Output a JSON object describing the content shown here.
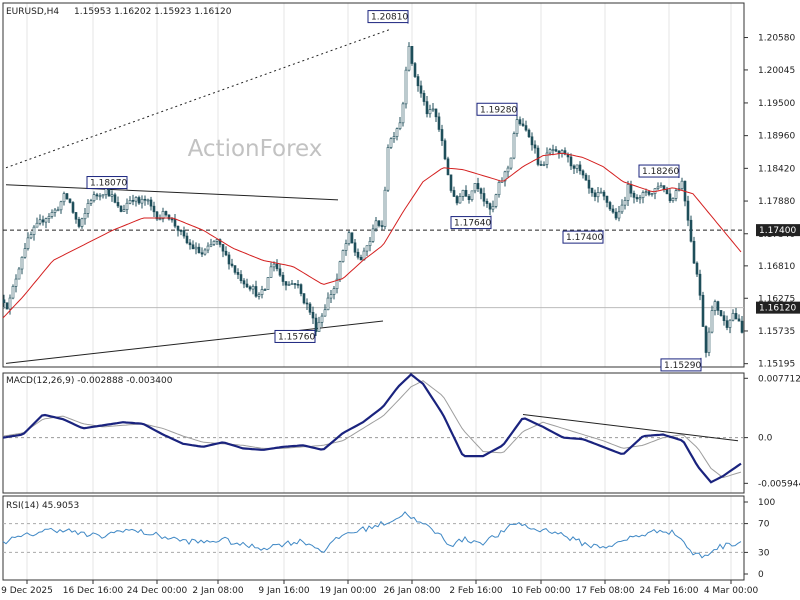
{
  "header": {
    "symbol": "EURUSD,H4",
    "ohlc": "1.15953 1.16202 1.15923 1.16120"
  },
  "watermark": "ActionForex",
  "colors": {
    "candle": "#1f4e5a",
    "ma": "#d42020",
    "macd": "#1a237e",
    "signal": "#9e9e9e",
    "rsi": "#3f88c5",
    "grid": "#e6e6e6",
    "border": "#333333"
  },
  "chart_data": [
    {
      "type": "candlestick",
      "pane": "price",
      "ylim": [
        1.514,
        1.2115
      ],
      "y_ticks": [
        "1.20580",
        "1.20045",
        "1.19500",
        "1.18960",
        "1.18420",
        "1.17880",
        "1.17340",
        "1.16810",
        "1.16275",
        "1.15735",
        "1.15195"
      ],
      "y_tick_values": [
        1.2058,
        1.20045,
        1.195,
        1.1896,
        1.1842,
        1.1788,
        1.1734,
        1.1681,
        1.16275,
        1.15735,
        1.15195
      ],
      "current_price": 1.1612,
      "current_price_label": "1.16120",
      "level": 1.174,
      "level_label": "1.17400",
      "price_anchors": [
        [
          0,
          1.1625
        ],
        [
          4,
          1.1612
        ],
        [
          10,
          1.165
        ],
        [
          20,
          1.171
        ],
        [
          30,
          1.174
        ],
        [
          40,
          1.176
        ],
        [
          50,
          1.177
        ],
        [
          55,
          1.178
        ],
        [
          60,
          1.1795
        ],
        [
          65,
          1.179
        ],
        [
          70,
          1.1765
        ],
        [
          75,
          1.1745
        ],
        [
          80,
          1.176
        ],
        [
          85,
          1.179
        ],
        [
          95,
          1.18
        ],
        [
          102,
          1.1807
        ],
        [
          108,
          1.1795
        ],
        [
          112,
          1.178
        ],
        [
          118,
          1.177
        ],
        [
          122,
          1.1783
        ],
        [
          128,
          1.1795
        ],
        [
          135,
          1.1785
        ],
        [
          142,
          1.179
        ],
        [
          148,
          1.1775
        ],
        [
          155,
          1.176
        ],
        [
          162,
          1.177
        ],
        [
          168,
          1.1755
        ],
        [
          175,
          1.174
        ],
        [
          182,
          1.172
        ],
        [
          190,
          1.171
        ],
        [
          198,
          1.17
        ],
        [
          205,
          1.171
        ],
        [
          212,
          1.1725
        ],
        [
          218,
          1.1705
        ],
        [
          225,
          1.169
        ],
        [
          232,
          1.167
        ],
        [
          240,
          1.1655
        ],
        [
          248,
          1.1645
        ],
        [
          255,
          1.163
        ],
        [
          262,
          1.1645
        ],
        [
          268,
          1.169
        ],
        [
          272,
          1.168
        ],
        [
          278,
          1.166
        ],
        [
          285,
          1.165
        ],
        [
          292,
          1.1655
        ],
        [
          298,
          1.163
        ],
        [
          305,
          1.161
        ],
        [
          312,
          1.1578
        ],
        [
          318,
          1.16
        ],
        [
          325,
          1.163
        ],
        [
          332,
          1.165
        ],
        [
          338,
          1.17
        ],
        [
          345,
          1.173
        ],
        [
          352,
          1.17
        ],
        [
          358,
          1.169
        ],
        [
          362,
          1.171
        ],
        [
          368,
          1.173
        ],
        [
          372,
          1.176
        ],
        [
          378,
          1.174
        ],
        [
          384,
          1.188
        ],
        [
          390,
          1.19
        ],
        [
          396,
          1.192
        ],
        [
          400,
          1.196
        ],
        [
          404,
          1.206
        ],
        [
          408,
          1.201
        ],
        [
          412,
          1.199
        ],
        [
          418,
          1.196
        ],
        [
          424,
          1.193
        ],
        [
          430,
          1.194
        ],
        [
          436,
          1.19
        ],
        [
          442,
          1.185
        ],
        [
          448,
          1.18
        ],
        [
          452,
          1.178
        ],
        [
          458,
          1.181
        ],
        [
          464,
          1.179
        ],
        [
          470,
          1.182
        ],
        [
          476,
          1.181
        ],
        [
          482,
          1.178
        ],
        [
          488,
          1.177
        ],
        [
          494,
          1.181
        ],
        [
          500,
          1.183
        ],
        [
          506,
          1.185
        ],
        [
          510,
          1.19
        ],
        [
          514,
          1.1925
        ],
        [
          518,
          1.191
        ],
        [
          524,
          1.19
        ],
        [
          530,
          1.188
        ],
        [
          536,
          1.184
        ],
        [
          542,
          1.186
        ],
        [
          548,
          1.1875
        ],
        [
          554,
          1.186
        ],
        [
          560,
          1.187
        ],
        [
          566,
          1.185
        ],
        [
          572,
          1.1845
        ],
        [
          578,
          1.183
        ],
        [
          584,
          1.181
        ],
        [
          590,
          1.179
        ],
        [
          596,
          1.18
        ],
        [
          602,
          1.179
        ],
        [
          608,
          1.177
        ],
        [
          614,
          1.176
        ],
        [
          618,
          1.178
        ],
        [
          624,
          1.181
        ],
        [
          630,
          1.18
        ],
        [
          636,
          1.179
        ],
        [
          642,
          1.1805
        ],
        [
          648,
          1.18
        ],
        [
          654,
          1.1815
        ],
        [
          660,
          1.181
        ],
        [
          666,
          1.179
        ],
        [
          672,
          1.1805
        ],
        [
          678,
          1.182
        ],
        [
          684,
          1.176
        ],
        [
          690,
          1.169
        ],
        [
          694,
          1.166
        ],
        [
          698,
          1.16
        ],
        [
          702,
          1.154
        ],
        [
          706,
          1.159
        ],
        [
          710,
          1.162
        ],
        [
          716,
          1.1605
        ],
        [
          722,
          1.158
        ],
        [
          728,
          1.1605
        ],
        [
          734,
          1.159
        ],
        [
          738,
          1.157
        ]
      ],
      "ma_anchors": [
        [
          0,
          1.1595
        ],
        [
          20,
          1.163
        ],
        [
          50,
          1.169
        ],
        [
          80,
          1.1715
        ],
        [
          110,
          1.174
        ],
        [
          140,
          1.176
        ],
        [
          170,
          1.176
        ],
        [
          200,
          1.174
        ],
        [
          230,
          1.171
        ],
        [
          260,
          1.169
        ],
        [
          290,
          1.168
        ],
        [
          320,
          1.165
        ],
        [
          340,
          1.166
        ],
        [
          360,
          1.169
        ],
        [
          380,
          1.1715
        ],
        [
          400,
          1.177
        ],
        [
          420,
          1.182
        ],
        [
          440,
          1.1843
        ],
        [
          460,
          1.184
        ],
        [
          480,
          1.183
        ],
        [
          500,
          1.182
        ],
        [
          520,
          1.1845
        ],
        [
          540,
          1.1863
        ],
        [
          560,
          1.1867
        ],
        [
          580,
          1.186
        ],
        [
          600,
          1.1845
        ],
        [
          620,
          1.182
        ],
        [
          650,
          1.1803
        ],
        [
          670,
          1.181
        ],
        [
          690,
          1.18
        ],
        [
          710,
          1.176
        ],
        [
          740,
          1.17
        ]
      ],
      "labels": [
        {
          "text": "1.20810",
          "x": 405,
          "value": 1.2081,
          "anchor": "top"
        },
        {
          "text": "1.19280",
          "x": 514,
          "value": 1.1928,
          "anchor": "top"
        },
        {
          "text": "1.18260",
          "x": 676,
          "value": 1.1826,
          "anchor": "top"
        },
        {
          "text": "1.18070",
          "x": 124,
          "value": 1.1807,
          "anchor": "top"
        },
        {
          "text": "1.17640",
          "x": 488,
          "value": 1.1764,
          "anchor": "bottom"
        },
        {
          "text": "1.17400",
          "x": 600,
          "value": 1.174,
          "anchor": "bottom"
        },
        {
          "text": "1.15760",
          "x": 312,
          "value": 1.1576,
          "anchor": "bottom"
        },
        {
          "text": "1.15290",
          "x": 698,
          "value": 1.1529,
          "anchor": "bottom"
        }
      ],
      "trendlines": [
        {
          "style": "dotted",
          "from": [
            3,
            1.1843
          ],
          "to": [
            388,
            1.2072
          ]
        },
        {
          "style": "solid",
          "from": [
            3,
            1.1815
          ],
          "to": [
            335,
            1.179
          ]
        },
        {
          "style": "solid",
          "from": [
            3,
            1.152
          ],
          "to": [
            380,
            1.159
          ]
        }
      ]
    },
    {
      "type": "line",
      "pane": "macd",
      "title": "MACD(12,26,9) -0.002888 -0.003400",
      "ylim": [
        -0.0072,
        0.0084
      ],
      "y_ticks": [
        "0.007712",
        "0.0",
        "-0.005944"
      ],
      "y_tick_values": [
        0.007712,
        0.0,
        -0.005944
      ],
      "macd_anchors": [
        [
          0,
          0.0
        ],
        [
          20,
          0.0004
        ],
        [
          40,
          0.003
        ],
        [
          60,
          0.0024
        ],
        [
          80,
          0.0012
        ],
        [
          100,
          0.0016
        ],
        [
          120,
          0.002
        ],
        [
          140,
          0.0018
        ],
        [
          160,
          0.0004
        ],
        [
          180,
          -0.0008
        ],
        [
          200,
          -0.0012
        ],
        [
          220,
          -0.0006
        ],
        [
          240,
          -0.0014
        ],
        [
          260,
          -0.0016
        ],
        [
          280,
          -0.0012
        ],
        [
          300,
          -0.001
        ],
        [
          320,
          -0.0016
        ],
        [
          340,
          0.0006
        ],
        [
          360,
          0.002
        ],
        [
          380,
          0.004
        ],
        [
          395,
          0.0066
        ],
        [
          408,
          0.0082
        ],
        [
          420,
          0.007
        ],
        [
          440,
          0.003
        ],
        [
          460,
          -0.0024
        ],
        [
          480,
          -0.0024
        ],
        [
          500,
          -0.001
        ],
        [
          520,
          0.0026
        ],
        [
          540,
          0.0014
        ],
        [
          560,
          0.0
        ],
        [
          580,
          -0.0002
        ],
        [
          600,
          -0.0012
        ],
        [
          620,
          -0.0022
        ],
        [
          640,
          0.0002
        ],
        [
          660,
          0.0004
        ],
        [
          680,
          -0.0004
        ],
        [
          695,
          -0.0038
        ],
        [
          708,
          -0.0058
        ],
        [
          720,
          -0.005
        ],
        [
          740,
          -0.0032
        ]
      ],
      "signal_anchors": [
        [
          0,
          0.0002
        ],
        [
          20,
          0.0006
        ],
        [
          40,
          0.0024
        ],
        [
          60,
          0.0028
        ],
        [
          80,
          0.0018
        ],
        [
          100,
          0.0014
        ],
        [
          120,
          0.0016
        ],
        [
          140,
          0.0018
        ],
        [
          160,
          0.0012
        ],
        [
          180,
          0.0002
        ],
        [
          200,
          -0.0006
        ],
        [
          220,
          -0.0008
        ],
        [
          240,
          -0.001
        ],
        [
          260,
          -0.0014
        ],
        [
          280,
          -0.0014
        ],
        [
          300,
          -0.0012
        ],
        [
          320,
          -0.001
        ],
        [
          340,
          -0.0004
        ],
        [
          360,
          0.0012
        ],
        [
          380,
          0.0028
        ],
        [
          395,
          0.0048
        ],
        [
          408,
          0.0066
        ],
        [
          420,
          0.0074
        ],
        [
          440,
          0.0054
        ],
        [
          460,
          0.001
        ],
        [
          480,
          -0.0018
        ],
        [
          500,
          -0.002
        ],
        [
          520,
          0.0008
        ],
        [
          540,
          0.002
        ],
        [
          560,
          0.0012
        ],
        [
          580,
          0.0004
        ],
        [
          600,
          -0.0004
        ],
        [
          620,
          -0.0014
        ],
        [
          640,
          -0.001
        ],
        [
          660,
          0.0
        ],
        [
          680,
          0.0004
        ],
        [
          695,
          -0.0014
        ],
        [
          708,
          -0.004
        ],
        [
          720,
          -0.0052
        ],
        [
          740,
          -0.0044
        ]
      ],
      "trendline": {
        "from": [
          520,
          0.003
        ],
        "to": [
          735,
          -0.0004
        ]
      }
    },
    {
      "type": "line",
      "pane": "rsi",
      "title": "RSI(14) 45.9053",
      "ylim": [
        0,
        100
      ],
      "y_ticks": [
        "100",
        "70",
        "30",
        "0"
      ],
      "y_tick_values": [
        100,
        70,
        30,
        0
      ],
      "rsi_anchors": [
        [
          0,
          45
        ],
        [
          20,
          52
        ],
        [
          40,
          60
        ],
        [
          60,
          62
        ],
        [
          80,
          55
        ],
        [
          100,
          52
        ],
        [
          120,
          62
        ],
        [
          140,
          58
        ],
        [
          160,
          52
        ],
        [
          180,
          46
        ],
        [
          200,
          44
        ],
        [
          220,
          48
        ],
        [
          240,
          40
        ],
        [
          260,
          36
        ],
        [
          280,
          42
        ],
        [
          300,
          46
        ],
        [
          320,
          32
        ],
        [
          340,
          55
        ],
        [
          360,
          62
        ],
        [
          380,
          70
        ],
        [
          395,
          78
        ],
        [
          404,
          86
        ],
        [
          412,
          74
        ],
        [
          424,
          66
        ],
        [
          436,
          55
        ],
        [
          448,
          40
        ],
        [
          460,
          48
        ],
        [
          480,
          44
        ],
        [
          500,
          58
        ],
        [
          514,
          72
        ],
        [
          530,
          62
        ],
        [
          550,
          60
        ],
        [
          570,
          48
        ],
        [
          585,
          40
        ],
        [
          600,
          38
        ],
        [
          615,
          42
        ],
        [
          630,
          52
        ],
        [
          645,
          56
        ],
        [
          660,
          62
        ],
        [
          675,
          54
        ],
        [
          690,
          28
        ],
        [
          702,
          24
        ],
        [
          712,
          36
        ],
        [
          724,
          40
        ],
        [
          740,
          46
        ]
      ]
    }
  ],
  "x_axis": {
    "labels": [
      {
        "text": "9 Dec 2025",
        "x": 27
      },
      {
        "text": "16 Dec 16:00",
        "x": 93
      },
      {
        "text": "24 Dec 00:00",
        "x": 157
      },
      {
        "text": "2 Jan 08:00",
        "x": 218
      },
      {
        "text": "9 Jan 16:00",
        "x": 284
      },
      {
        "text": "19 Jan 00:00",
        "x": 348
      },
      {
        "text": "26 Jan 08:00",
        "x": 412
      },
      {
        "text": "2 Feb 16:00",
        "x": 476
      },
      {
        "text": "10 Feb 00:00",
        "x": 541
      },
      {
        "text": "17 Feb 08:00",
        "x": 605
      },
      {
        "text": "24 Feb 16:00",
        "x": 669
      },
      {
        "text": "4 Mar 00:00",
        "x": 731
      }
    ]
  }
}
